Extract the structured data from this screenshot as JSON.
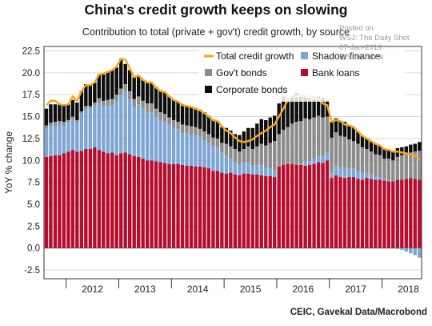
{
  "header": {
    "title": "China's credit growth keeps on slowing",
    "subtitle": "Contribution to total (private + gov't) credit growth, by source"
  },
  "watermark": {
    "line1": "Posted on",
    "line2": "WSJ: The Daily Shot",
    "line3": "07-Jan-2019",
    "line4": "@SoberLook"
  },
  "footer": {
    "source": "CEIC, Gavekal Data/Macrobond"
  },
  "colors": {
    "bank_loans": "#b50d2f",
    "shadow_finance": "#7ea6d3",
    "govt_bonds": "#8c8c8c",
    "corporate_bonds": "#0d0d0d",
    "total": "#f5a623"
  },
  "chart_data": {
    "type": "bar",
    "stacked": true,
    "ylabel": "YoY % change",
    "ylim": [
      -3.5,
      23
    ],
    "yticks": [
      -2.5,
      0.0,
      2.5,
      5.0,
      7.5,
      10.0,
      12.5,
      15.0,
      17.5,
      20.0,
      22.5
    ],
    "ytick_labels": [
      "-2.5",
      "0.0",
      "2.5",
      "5.0",
      "7.5",
      "10.0",
      "12.5",
      "15.0",
      "17.5",
      "20.0",
      "22.5"
    ],
    "xlim": [
      2011.58,
      2018.75
    ],
    "xtick_labels": [
      "2012",
      "2013",
      "2014",
      "2015",
      "2016",
      "2017",
      "2018"
    ],
    "xtick_positions": [
      2012.5,
      2013.5,
      2014.5,
      2015.5,
      2016.5,
      2017.5,
      2018.5
    ],
    "year_boundaries": [
      2012,
      2013,
      2014,
      2015,
      2016,
      2017,
      2018
    ],
    "legend_position": "top-right",
    "series": [
      {
        "name": "Total credit growth",
        "key": "total"
      },
      {
        "name": "Shadow finance",
        "key": "shadow_finance"
      },
      {
        "name": "Gov't bonds",
        "key": "govt_bonds"
      },
      {
        "name": "Bank loans",
        "key": "bank_loans"
      },
      {
        "name": "Corporate bonds",
        "key": "corporate_bonds"
      }
    ],
    "x": [
      2011.625,
      2011.708,
      2011.792,
      2011.875,
      2011.958,
      2012.042,
      2012.125,
      2012.208,
      2012.292,
      2012.375,
      2012.458,
      2012.542,
      2012.625,
      2012.708,
      2012.792,
      2012.875,
      2012.958,
      2013.042,
      2013.125,
      2013.208,
      2013.292,
      2013.375,
      2013.458,
      2013.542,
      2013.625,
      2013.708,
      2013.792,
      2013.875,
      2013.958,
      2014.042,
      2014.125,
      2014.208,
      2014.292,
      2014.375,
      2014.458,
      2014.542,
      2014.625,
      2014.708,
      2014.792,
      2014.875,
      2014.958,
      2015.042,
      2015.125,
      2015.208,
      2015.292,
      2015.375,
      2015.458,
      2015.542,
      2015.625,
      2015.708,
      2015.792,
      2015.875,
      2015.958,
      2016.042,
      2016.125,
      2016.208,
      2016.292,
      2016.375,
      2016.458,
      2016.542,
      2016.625,
      2016.708,
      2016.792,
      2016.875,
      2016.958,
      2017.042,
      2017.125,
      2017.208,
      2017.292,
      2017.375,
      2017.458,
      2017.542,
      2017.625,
      2017.708,
      2017.792,
      2017.875,
      2017.958,
      2018.042,
      2018.125,
      2018.208,
      2018.292,
      2018.375,
      2018.458,
      2018.542,
      2018.625,
      2018.708
    ],
    "bank_loans": [
      10.4,
      10.5,
      10.6,
      10.6,
      10.8,
      11.0,
      11.2,
      11.0,
      11.1,
      11.3,
      11.3,
      11.5,
      11.2,
      11.0,
      10.8,
      10.9,
      10.6,
      10.8,
      10.9,
      10.7,
      10.5,
      10.4,
      10.2,
      10.0,
      10.0,
      9.9,
      9.8,
      9.7,
      9.6,
      9.6,
      9.6,
      9.5,
      9.4,
      9.4,
      9.3,
      9.3,
      9.2,
      9.1,
      8.8,
      8.8,
      8.6,
      8.5,
      8.6,
      8.4,
      8.3,
      8.5,
      8.5,
      8.4,
      8.4,
      8.3,
      8.2,
      8.2,
      8.1,
      9.3,
      9.5,
      9.6,
      9.6,
      9.5,
      9.5,
      9.4,
      9.5,
      9.6,
      9.8,
      9.7,
      10.0,
      8.0,
      8.3,
      8.1,
      8.0,
      8.1,
      8.1,
      7.9,
      7.8,
      8.0,
      7.9,
      7.8,
      7.8,
      7.7,
      7.6,
      7.6,
      7.8,
      7.8,
      7.9,
      8.0,
      7.9,
      7.8
    ],
    "shadow_finance": [
      3.2,
      3.4,
      3.4,
      3.5,
      3.2,
      3.3,
      3.5,
      3.3,
      4.2,
      4.6,
      4.6,
      4.8,
      5.4,
      5.2,
      5.4,
      5.4,
      6.2,
      6.7,
      7.0,
      6.3,
      5.6,
      6.0,
      5.8,
      5.6,
      5.5,
      5.1,
      4.8,
      4.7,
      4.5,
      4.1,
      4.0,
      3.6,
      3.7,
      3.5,
      3.6,
      3.4,
      3.1,
      2.9,
      2.8,
      2.8,
      2.3,
      2.1,
      1.6,
      1.4,
      1.2,
      1.3,
      1.3,
      1.0,
      1.1,
      1.2,
      1.0,
      0.9,
      0.8,
      0.0,
      0.0,
      0.0,
      0.0,
      0.0,
      0.1,
      0.5,
      0.4,
      0.6,
      0.7,
      0.8,
      0.9,
      0.7,
      1.1,
      1.1,
      1.2,
      1.0,
      1.0,
      0.9,
      0.8,
      0.6,
      0.5,
      0.4,
      0.3,
      0.1,
      0.1,
      0.0,
      -0.1,
      -0.2,
      -0.4,
      -0.6,
      -0.8,
      -1.1
    ],
    "govt_bonds": [
      0.4,
      0.4,
      0.4,
      0.4,
      0.4,
      0.3,
      0.3,
      0.3,
      0.3,
      0.3,
      0.3,
      0.3,
      0.5,
      0.6,
      0.7,
      0.7,
      0.7,
      0.7,
      0.8,
      0.9,
      0.9,
      0.9,
      0.8,
      0.9,
      1.0,
      0.9,
      0.9,
      0.9,
      0.8,
      0.9,
      0.8,
      1.0,
      0.9,
      1.0,
      0.9,
      0.9,
      1.0,
      1.0,
      1.0,
      0.9,
      1.1,
      1.3,
      1.4,
      1.5,
      1.5,
      1.5,
      1.8,
      1.9,
      2.1,
      2.4,
      2.5,
      2.9,
      3.3,
      3.7,
      4.0,
      4.2,
      4.6,
      4.9,
      4.9,
      4.9,
      4.8,
      4.7,
      4.6,
      4.4,
      4.1,
      3.9,
      3.8,
      3.6,
      3.5,
      3.3,
      3.1,
      3.1,
      2.9,
      2.7,
      2.6,
      2.5,
      2.5,
      2.4,
      2.5,
      2.4,
      2.6,
      2.8,
      2.8,
      2.9,
      3.1,
      3.3
    ],
    "corporate_bonds": [
      1.9,
      2.1,
      2.0,
      1.9,
      1.9,
      1.8,
      1.9,
      2.0,
      2.3,
      2.5,
      2.5,
      2.3,
      2.7,
      3.0,
      3.2,
      3.3,
      3.1,
      3.4,
      2.3,
      2.4,
      2.5,
      2.4,
      2.4,
      2.4,
      2.3,
      2.5,
      2.5,
      2.5,
      2.4,
      2.3,
      2.3,
      2.3,
      2.2,
      2.2,
      2.2,
      2.2,
      2.2,
      2.1,
      2.0,
      2.0,
      1.8,
      1.8,
      1.8,
      1.7,
      1.9,
      2.0,
      2.1,
      2.4,
      2.6,
      2.8,
      2.9,
      2.9,
      2.9,
      3.5,
      3.8,
      3.3,
      3.2,
      3.3,
      2.9,
      2.6,
      2.5,
      2.4,
      2.2,
      2.2,
      1.9,
      1.8,
      1.6,
      1.7,
      1.7,
      1.6,
      1.6,
      1.4,
      1.3,
      1.2,
      1.2,
      1.2,
      1.1,
      1.1,
      1.0,
      1.0,
      1.0,
      0.9,
      0.9,
      0.9,
      0.9,
      1.0
    ],
    "total": [
      16.3,
      16.8,
      16.8,
      16.4,
      16.3,
      16.4,
      17.3,
      16.8,
      17.9,
      18.6,
      18.6,
      18.9,
      19.8,
      19.9,
      20.1,
      20.3,
      20.7,
      21.6,
      21.5,
      20.5,
      19.5,
      19.7,
      19.2,
      18.9,
      18.9,
      18.3,
      17.9,
      17.8,
      17.3,
      16.9,
      16.7,
      16.3,
      16.2,
      16.1,
      15.9,
      15.7,
      15.4,
      15.0,
      14.6,
      14.5,
      13.9,
      13.4,
      13.1,
      12.6,
      12.2,
      12.1,
      12.2,
      12.4,
      12.8,
      13.1,
      13.4,
      13.8,
      14.1,
      15.0,
      15.9,
      16.9,
      17.4,
      17.3,
      17.4,
      17.3,
      17.2,
      17.1,
      17.0,
      16.5,
      16.3,
      14.4,
      14.6,
      14.5,
      14.1,
      14.0,
      13.8,
      13.3,
      12.8,
      12.5,
      12.2,
      11.9,
      11.7,
      11.3,
      11.2,
      11.0,
      11.0,
      10.9,
      10.8,
      10.7,
      10.5,
      10.1
    ]
  }
}
